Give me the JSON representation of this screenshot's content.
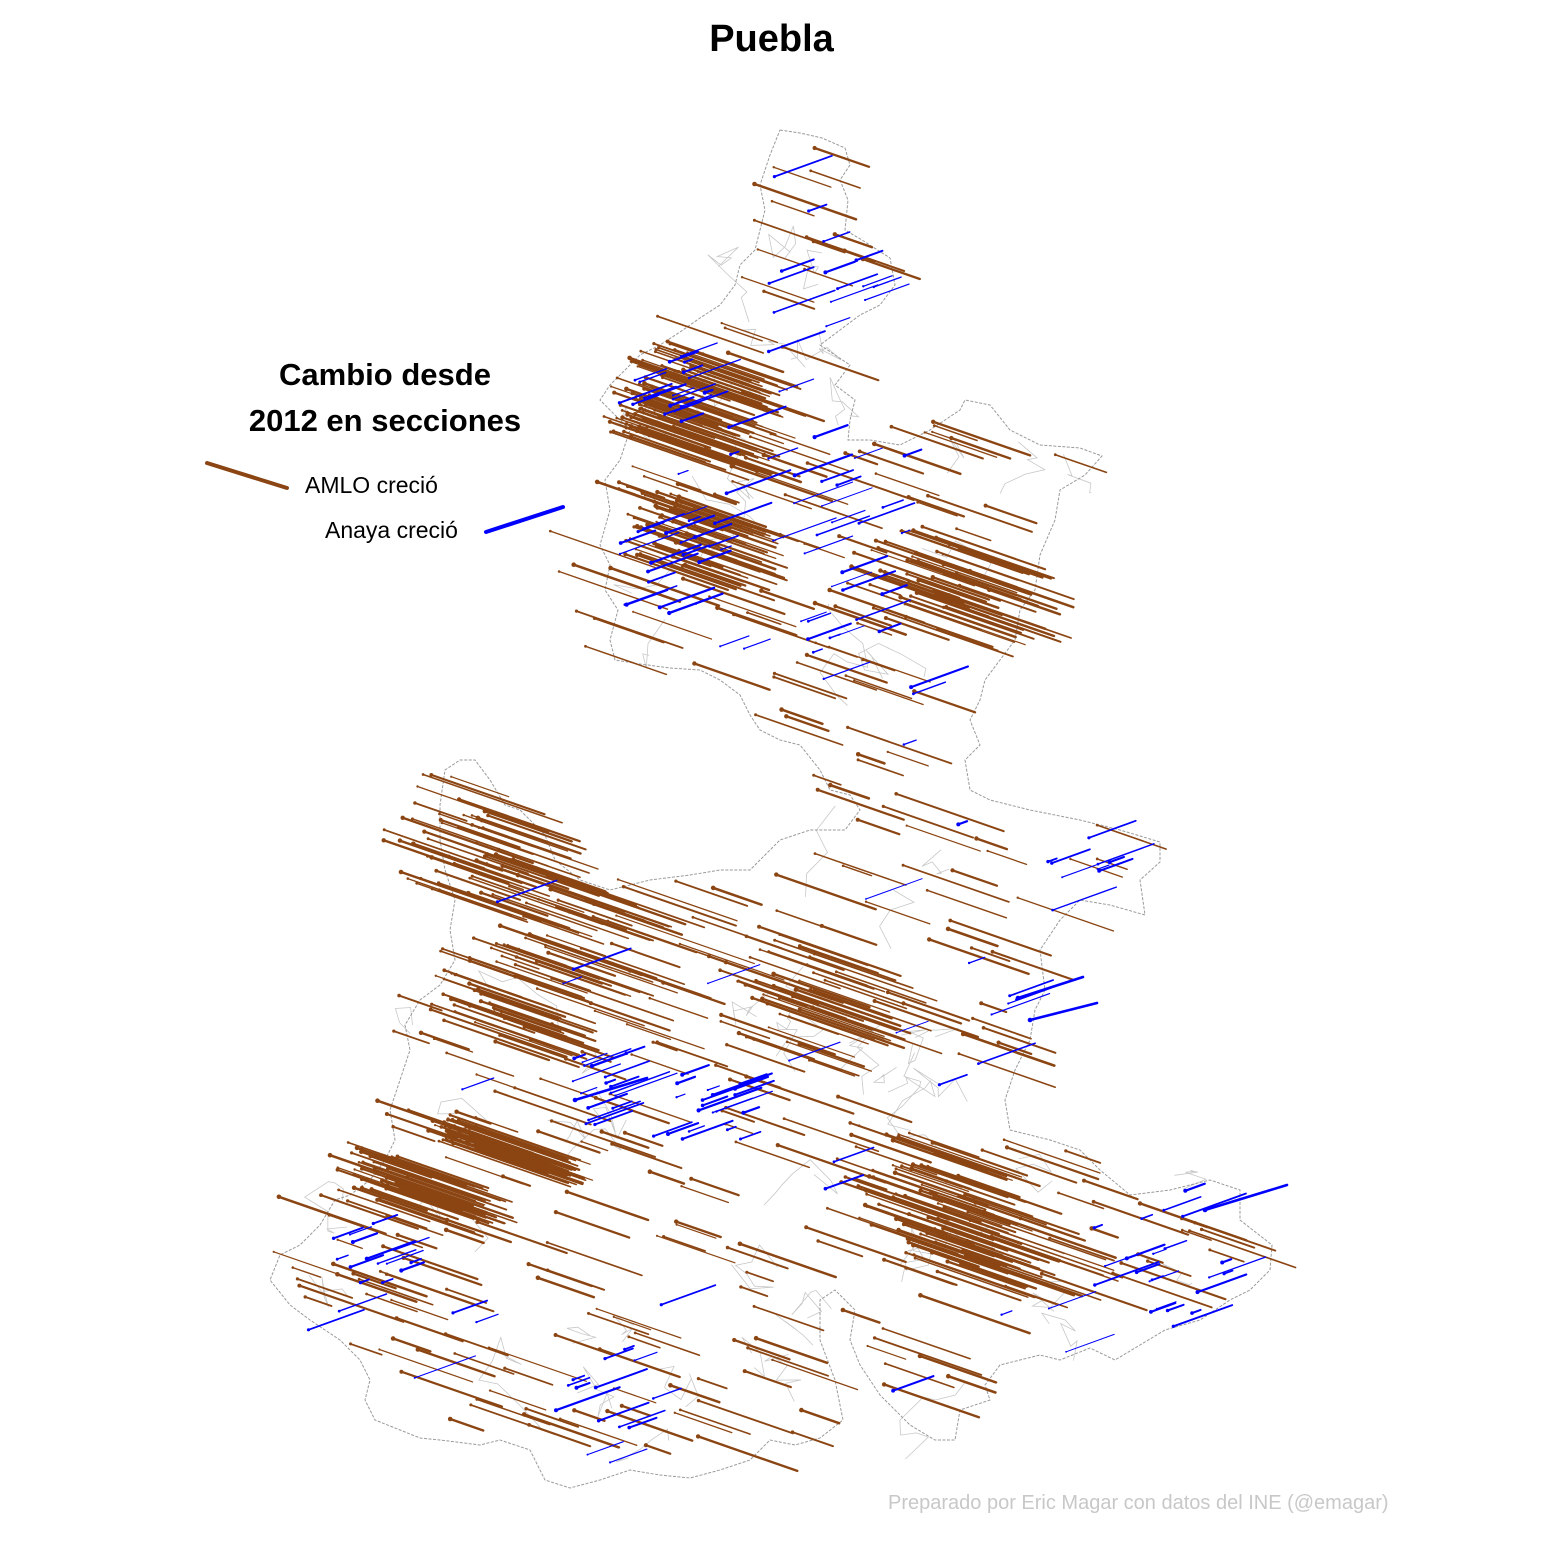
{
  "title": "Puebla",
  "legend": {
    "title_line1": "Cambio desde",
    "title_line2": "2012 en secciones",
    "amlo_label": "AMLO creció",
    "anaya_label": "Anaya creció"
  },
  "credit": "Preparado por Eric Magar con datos del INE (@emagar)",
  "colors": {
    "amlo": "#8B4513",
    "anaya": "#0000FF",
    "boundary": "#9a9a9a",
    "inner_boundary": "#c8c8c8",
    "credit": "#c8c8c8"
  }
}
